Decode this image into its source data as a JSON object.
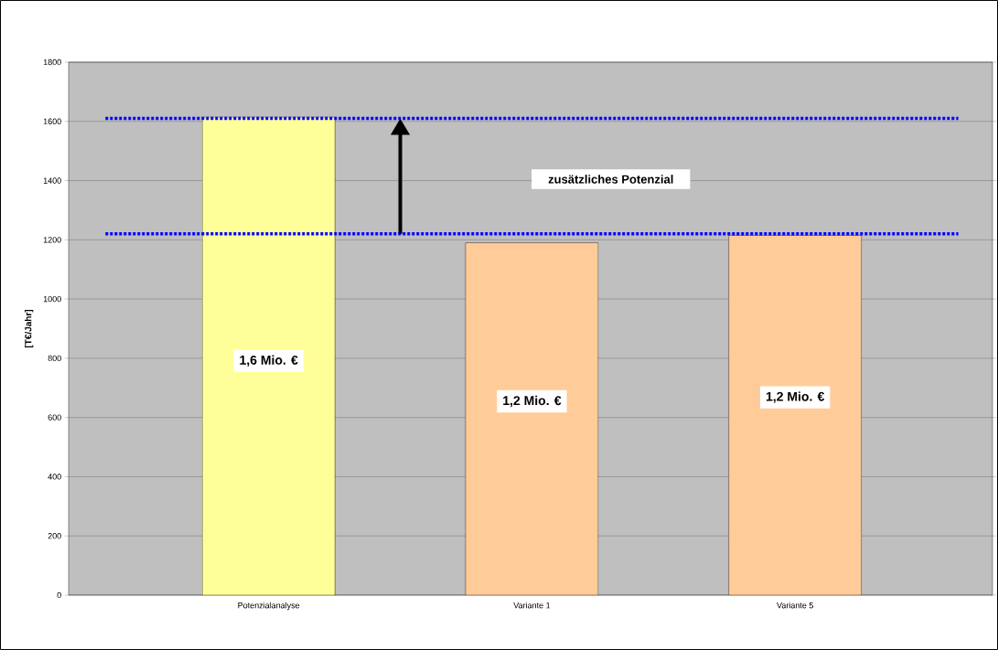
{
  "chart_data": {
    "type": "bar",
    "ylabel": "[T€/Jahr]",
    "categories": [
      "Potenzialanalyse",
      "Variante 1",
      "Variante 5"
    ],
    "values": [
      1615,
      1190,
      1215
    ],
    "colors": [
      "#ffff99",
      "#ffcc99",
      "#ffcc99"
    ],
    "ylim": [
      0,
      1800
    ],
    "yticks": [
      0,
      200,
      400,
      600,
      800,
      1000,
      1200,
      1400,
      1600,
      1800
    ],
    "grid": "y",
    "ref_lines": [
      {
        "axis": "y",
        "value": 1610,
        "color": "#0000ff",
        "line_style": "dotted"
      },
      {
        "axis": "y",
        "value": 1220,
        "color": "#0000ff",
        "line_style": "dotted"
      }
    ],
    "annotations": [
      "zusätzliches Potenzial",
      "1,6 Mio. €",
      "1,2 Mio. €",
      "1,2 Mio. €"
    ]
  }
}
